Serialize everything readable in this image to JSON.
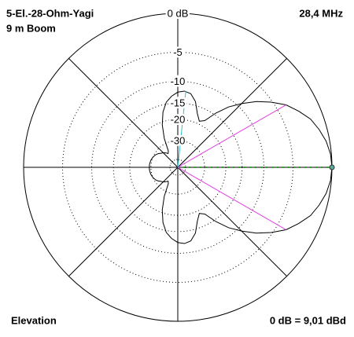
{
  "chart_data": {
    "type": "polar",
    "title": "5-El.-28-Ohm-Yagi",
    "subtitle": "9 m Boom",
    "frequency": "28,4 MHz",
    "view": "Elevation",
    "reference": "0 dB = 9,01 dBd",
    "radial_scale": "arrl",
    "rticks": [
      {
        "value": 0,
        "label": "0 dB"
      },
      -5,
      -10,
      -15,
      -20,
      -30
    ],
    "series": [
      {
        "color": "#000000",
        "angles": [
          0,
          5,
          10,
          15,
          20,
          25,
          30,
          35,
          40,
          45,
          50,
          55,
          60,
          65,
          70,
          75,
          80,
          85,
          90,
          95,
          100,
          105,
          110,
          115,
          120,
          125,
          130,
          135,
          140,
          145,
          150,
          155,
          160,
          165,
          170,
          175,
          180,
          185,
          190,
          195,
          200,
          205,
          210,
          215,
          220,
          225,
          230,
          235,
          240,
          245,
          250,
          255,
          260,
          265,
          270,
          275,
          280,
          285,
          290,
          295,
          300,
          305,
          310,
          315,
          320,
          325,
          330,
          335,
          340,
          345,
          350,
          355
        ],
        "values": [
          0,
          -0.1,
          -0.4,
          -0.9,
          -1.5,
          -2.5,
          -3.6,
          -5.2,
          -7,
          -9.2,
          -11.5,
          -14.5,
          -18,
          -19,
          -17,
          -14,
          -12.4,
          -12,
          -12.3,
          -13.2,
          -14.5,
          -17,
          -21,
          -27,
          -36,
          -38,
          -36,
          -34.5,
          -33.5,
          -32,
          -31,
          -30.3,
          -29.8,
          -29.4,
          -29.2,
          -29,
          -29,
          -29,
          -29.2,
          -29.4,
          -29.8,
          -30.3,
          -31,
          -32,
          -33.5,
          -34.5,
          -36,
          -38,
          -36,
          -27,
          -21,
          -17,
          -14.5,
          -13.2,
          -12.3,
          -12,
          -12.4,
          -14,
          -17,
          -19,
          -18,
          -14.5,
          -11.5,
          -9.2,
          -7,
          -5.2,
          -3.6,
          -2.5,
          -1.5,
          -0.9,
          -0.4,
          -0.1
        ]
      }
    ],
    "markers": [
      {
        "angle": 0,
        "value": 0,
        "color": "#22aa22"
      },
      {
        "angle": 30,
        "value": -3.6,
        "color": "#e040e0"
      },
      {
        "angle": 330,
        "value": -3.6,
        "color": "#e040e0"
      },
      {
        "angle": 84,
        "value": -12,
        "color": "#30c0d0"
      }
    ]
  }
}
